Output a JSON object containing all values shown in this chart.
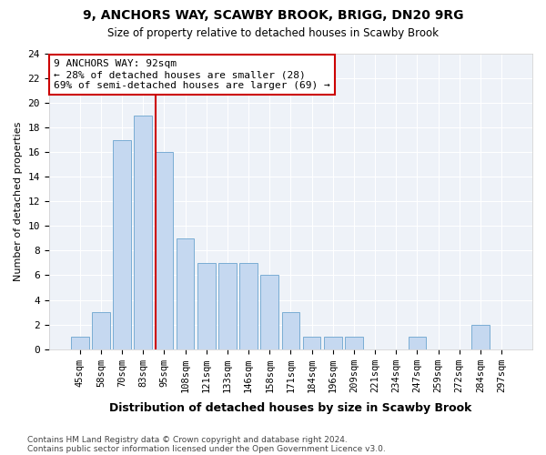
{
  "title1": "9, ANCHORS WAY, SCAWBY BROOK, BRIGG, DN20 9RG",
  "title2": "Size of property relative to detached houses in Scawby Brook",
  "xlabel": "Distribution of detached houses by size in Scawby Brook",
  "ylabel": "Number of detached properties",
  "bar_labels": [
    "45sqm",
    "58sqm",
    "70sqm",
    "83sqm",
    "95sqm",
    "108sqm",
    "121sqm",
    "133sqm",
    "146sqm",
    "158sqm",
    "171sqm",
    "184sqm",
    "196sqm",
    "209sqm",
    "221sqm",
    "234sqm",
    "247sqm",
    "259sqm",
    "272sqm",
    "284sqm",
    "297sqm"
  ],
  "bar_heights": [
    1,
    3,
    17,
    19,
    16,
    9,
    7,
    7,
    7,
    6,
    3,
    1,
    1,
    1,
    0,
    0,
    1,
    0,
    0,
    2,
    0
  ],
  "bar_color": "#c5d8f0",
  "bar_edge_color": "#7aadd4",
  "vline_color": "#cc0000",
  "annotation_text": "9 ANCHORS WAY: 92sqm\n← 28% of detached houses are smaller (28)\n69% of semi-detached houses are larger (69) →",
  "annotation_box_color": "#ffffff",
  "annotation_border_color": "#cc0000",
  "ylim": [
    0,
    24
  ],
  "yticks": [
    0,
    2,
    4,
    6,
    8,
    10,
    12,
    14,
    16,
    18,
    20,
    22,
    24
  ],
  "footnote1": "Contains HM Land Registry data © Crown copyright and database right 2024.",
  "footnote2": "Contains public sector information licensed under the Open Government Licence v3.0.",
  "bg_color": "#ffffff",
  "plot_bg_color": "#eef2f8",
  "grid_color": "#ffffff"
}
